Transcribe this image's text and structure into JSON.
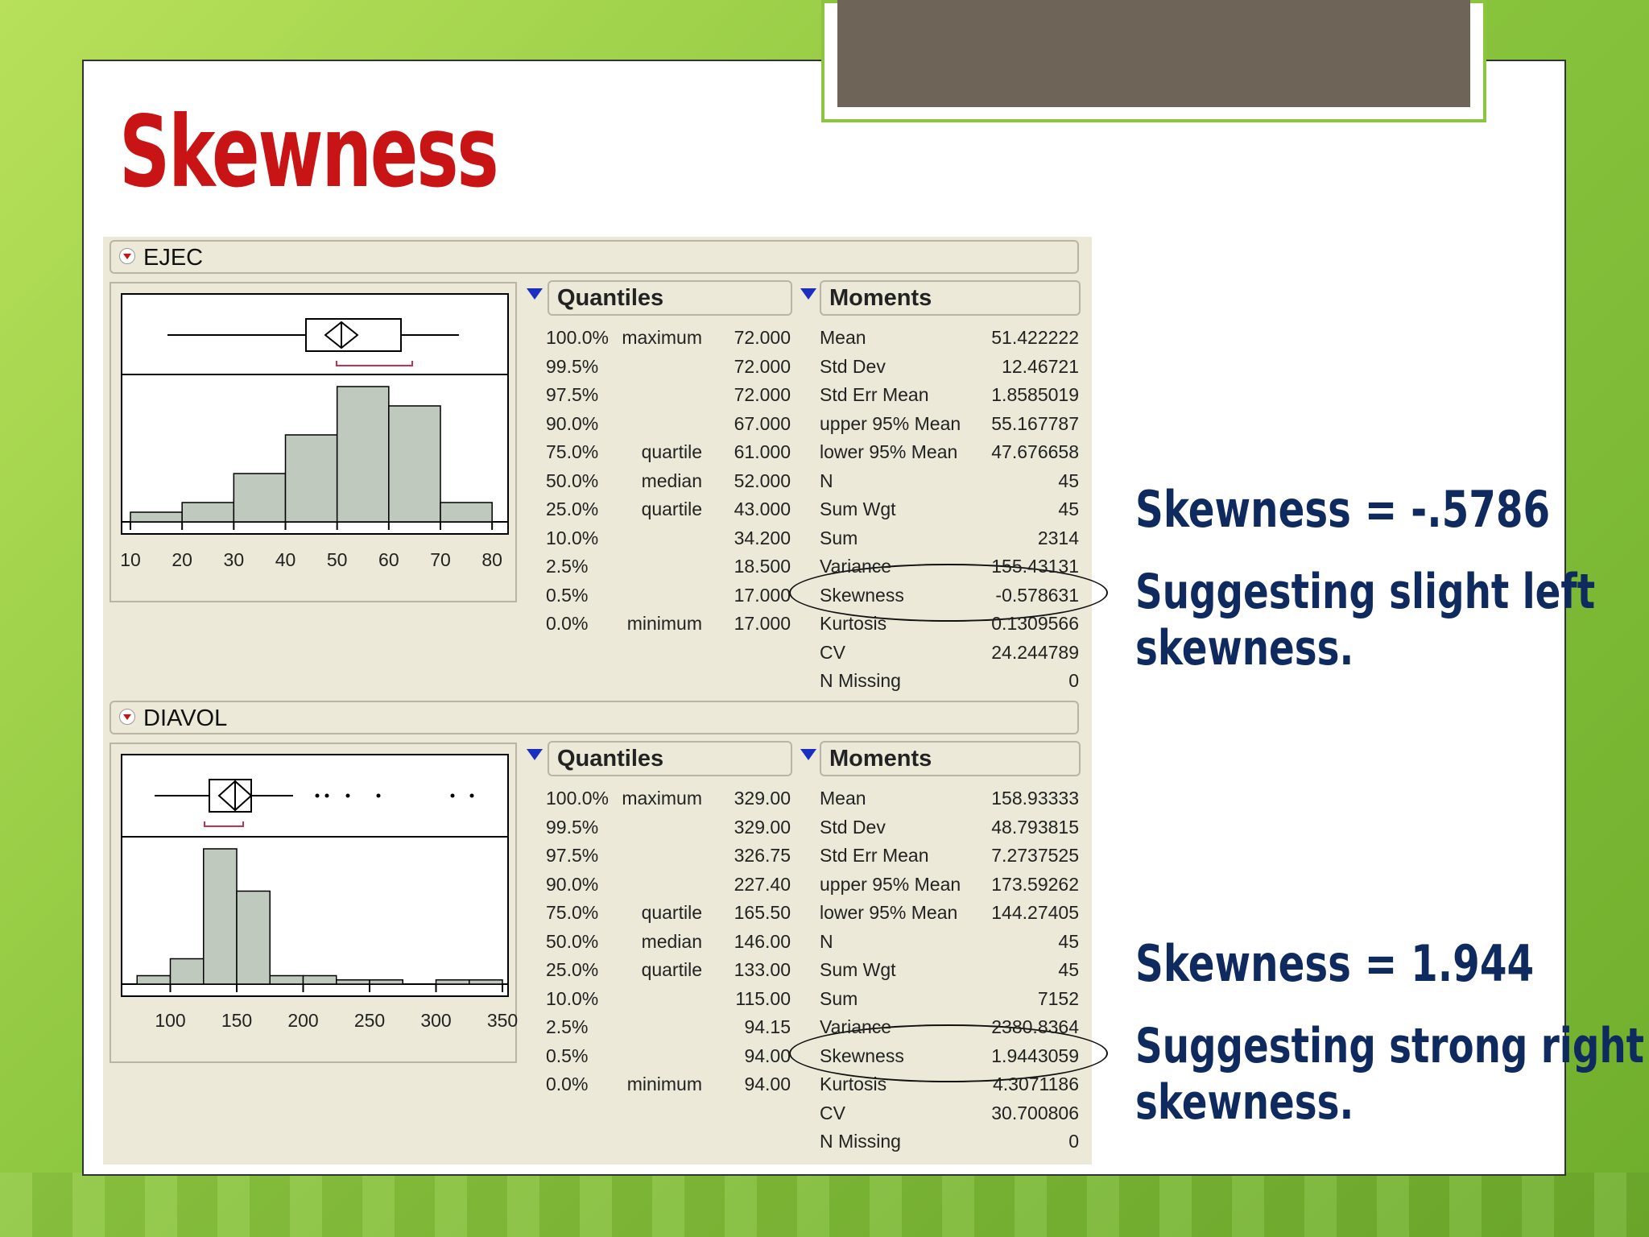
{
  "title": "Skewness",
  "panels": [
    {
      "variable": "EJEC",
      "quantiles_title": "Quantiles",
      "moments_title": "Moments",
      "axis_ticks": [
        "10",
        "20",
        "30",
        "40",
        "50",
        "60",
        "70",
        "80"
      ],
      "quantiles": [
        {
          "pct": "100.0%",
          "label": "maximum",
          "value": "72.000"
        },
        {
          "pct": "99.5%",
          "label": "",
          "value": "72.000"
        },
        {
          "pct": "97.5%",
          "label": "",
          "value": "72.000"
        },
        {
          "pct": "90.0%",
          "label": "",
          "value": "67.000"
        },
        {
          "pct": "75.0%",
          "label": "quartile",
          "value": "61.000"
        },
        {
          "pct": "50.0%",
          "label": "median",
          "value": "52.000"
        },
        {
          "pct": "25.0%",
          "label": "quartile",
          "value": "43.000"
        },
        {
          "pct": "10.0%",
          "label": "",
          "value": "34.200"
        },
        {
          "pct": "2.5%",
          "label": "",
          "value": "18.500"
        },
        {
          "pct": "0.5%",
          "label": "",
          "value": "17.000"
        },
        {
          "pct": "0.0%",
          "label": "minimum",
          "value": "17.000"
        }
      ],
      "moments": [
        {
          "name": "Mean",
          "value": "51.422222"
        },
        {
          "name": "Std Dev",
          "value": "12.46721"
        },
        {
          "name": "Std Err Mean",
          "value": "1.8585019"
        },
        {
          "name": "upper 95% Mean",
          "value": "55.167787"
        },
        {
          "name": "lower 95% Mean",
          "value": "47.676658"
        },
        {
          "name": "N",
          "value": "45"
        },
        {
          "name": "Sum Wgt",
          "value": "45"
        },
        {
          "name": "Sum",
          "value": "2314"
        },
        {
          "name": "Variance",
          "value": "155.43131"
        },
        {
          "name": "Skewness",
          "value": "-0.578631"
        },
        {
          "name": "Kurtosis",
          "value": "0.1309566"
        },
        {
          "name": "CV",
          "value": "24.244789"
        },
        {
          "name": "N Missing",
          "value": "0"
        }
      ]
    },
    {
      "variable": "DIAVOL",
      "quantiles_title": "Quantiles",
      "moments_title": "Moments",
      "axis_ticks": [
        "100",
        "150",
        "200",
        "250",
        "300",
        "350"
      ],
      "quantiles": [
        {
          "pct": "100.0%",
          "label": "maximum",
          "value": "329.00"
        },
        {
          "pct": "99.5%",
          "label": "",
          "value": "329.00"
        },
        {
          "pct": "97.5%",
          "label": "",
          "value": "326.75"
        },
        {
          "pct": "90.0%",
          "label": "",
          "value": "227.40"
        },
        {
          "pct": "75.0%",
          "label": "quartile",
          "value": "165.50"
        },
        {
          "pct": "50.0%",
          "label": "median",
          "value": "146.00"
        },
        {
          "pct": "25.0%",
          "label": "quartile",
          "value": "133.00"
        },
        {
          "pct": "10.0%",
          "label": "",
          "value": "115.00"
        },
        {
          "pct": "2.5%",
          "label": "",
          "value": "94.15"
        },
        {
          "pct": "0.5%",
          "label": "",
          "value": "94.00"
        },
        {
          "pct": "0.0%",
          "label": "minimum",
          "value": "94.00"
        }
      ],
      "moments": [
        {
          "name": "Mean",
          "value": "158.93333"
        },
        {
          "name": "Std Dev",
          "value": "48.793815"
        },
        {
          "name": "Std Err Mean",
          "value": "7.2737525"
        },
        {
          "name": "upper 95% Mean",
          "value": "173.59262"
        },
        {
          "name": "lower 95% Mean",
          "value": "144.27405"
        },
        {
          "name": "N",
          "value": "45"
        },
        {
          "name": "Sum Wgt",
          "value": "45"
        },
        {
          "name": "Sum",
          "value": "7152"
        },
        {
          "name": "Variance",
          "value": "2380.8364"
        },
        {
          "name": "Skewness",
          "value": "1.9443059"
        },
        {
          "name": "Kurtosis",
          "value": "4.3071186"
        },
        {
          "name": "CV",
          "value": "30.700806"
        },
        {
          "name": "N Missing",
          "value": "0"
        }
      ]
    }
  ],
  "notes": {
    "first_value": "Skewness = -.5786",
    "first_text_1": "Suggesting slight left",
    "first_text_2": "skewness.",
    "second_value": "Skewness = 1.944",
    "second_text_1": "Suggesting strong right",
    "second_text_2": "skewness."
  },
  "chart_data": [
    {
      "type": "bar",
      "categories": [
        "10-20",
        "20-30",
        "30-40",
        "40-50",
        "50-60",
        "60-70",
        "70-80"
      ],
      "values": [
        1,
        2,
        5,
        9,
        14,
        12,
        2
      ],
      "xlim": [
        10,
        80
      ]
    },
    {
      "type": "bar",
      "categories": [
        "75-100",
        "100-125",
        "125-150",
        "150-175",
        "175-200",
        "200-225",
        "225-250",
        "250-275",
        "275-300",
        "300-325",
        "325-350"
      ],
      "values": [
        1,
        3,
        16,
        11,
        1,
        1,
        0.5,
        0.5,
        0,
        0.5,
        0.5
      ],
      "xlim": [
        75,
        350
      ]
    }
  ],
  "colors": {
    "title": "#c81414",
    "notes": "#0f2a5e",
    "bars": "#c0c9bd"
  }
}
